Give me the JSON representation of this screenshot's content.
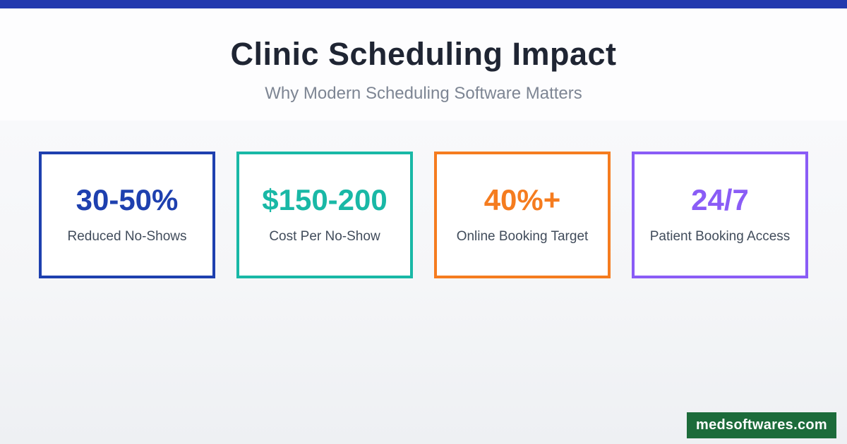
{
  "header": {
    "title": "Clinic Scheduling Impact",
    "subtitle": "Why Modern Scheduling Software Matters"
  },
  "stats": [
    {
      "value": "30-50%",
      "label": "Reduced No-Shows",
      "accent": "#1e40af"
    },
    {
      "value": "$150-200",
      "label": "Cost Per No-Show",
      "accent": "#19b8a6"
    },
    {
      "value": "40%+",
      "label": "Online Booking Target",
      "accent": "#f57c1f"
    },
    {
      "value": "24/7",
      "label": "Patient Booking Access",
      "accent": "#8a5cf6"
    }
  ],
  "badge": {
    "text": "medsoftwares.com"
  },
  "colors": {
    "top_bar": "#2239ae",
    "title": "#1f2533",
    "subtitle": "#7d8593",
    "stat_label": "#414c5b",
    "card_bg": "#ffffff",
    "badge_bg": "#1c6b3a",
    "badge_text": "#ffffff",
    "page_top": "#fdfdfe",
    "page_bottom": "#eef0f3"
  }
}
